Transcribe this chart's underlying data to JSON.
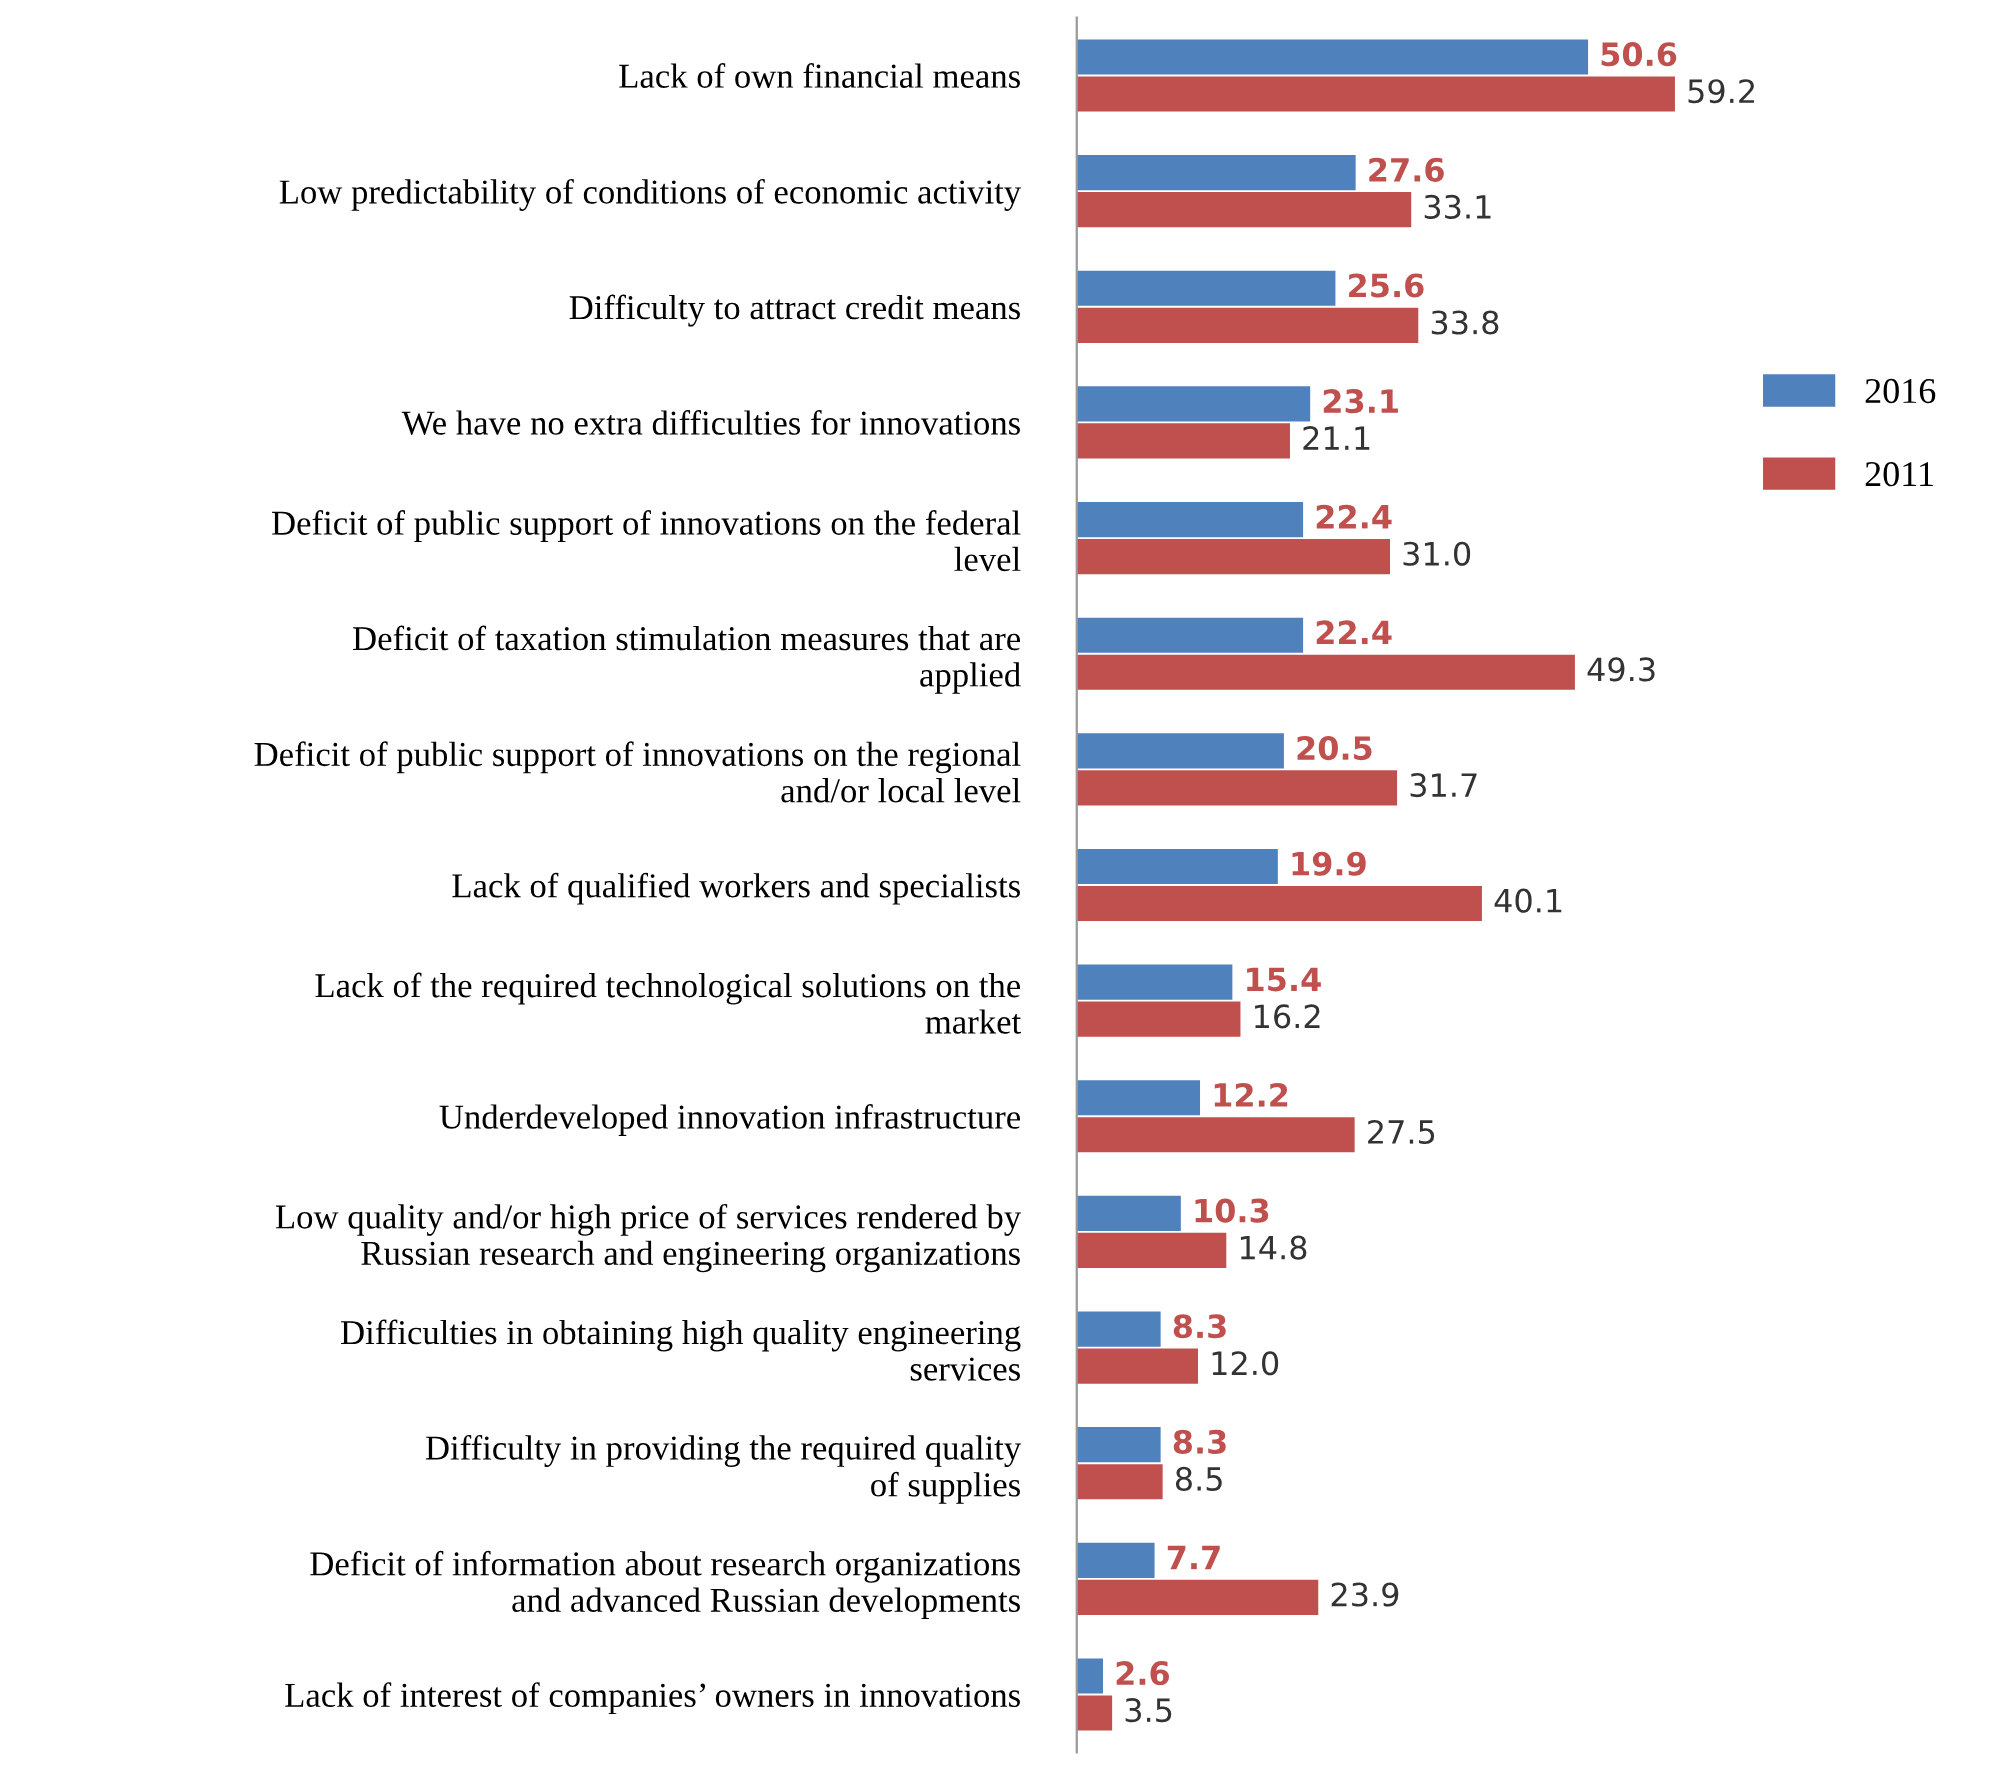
{
  "chart_data": {
    "type": "bar",
    "orientation": "horizontal",
    "legend": "right",
    "grid": false,
    "categories": [
      "Lack of own financial means",
      "Low predictability of conditions of economic activity",
      "Difficulty to attract credit means",
      "We have no extra difficulties for innovations",
      "Deficit of public support of innovations on the federal\nlevel",
      "Deficit of taxation stimulation measures that are\napplied",
      "Deficit of public support of innovations on the regional\nand/or local level",
      "Lack of qualified workers and specialists",
      "Lack of the required technological solutions on the\nmarket",
      "Underdeveloped innovation infrastructure",
      "Low quality and/or high price of services rendered by\nRussian research and engineering organizations",
      "Difficulties in obtaining high quality engineering\nservices",
      "Difficulty in providing the required quality\nof supplies",
      "Deficit of information about research organizations\nand advanced Russian developments",
      "Lack of interest of companies’ owners in innovations"
    ],
    "series": [
      {
        "name": "2016",
        "color": "#4f81bd",
        "values": [
          50.6,
          27.6,
          25.6,
          23.1,
          22.4,
          22.4,
          20.5,
          19.9,
          15.4,
          12.2,
          10.3,
          8.3,
          8.3,
          7.7,
          2.6
        ],
        "value_labels": [
          "50.6",
          "27.6",
          "25.6",
          "23.1",
          "22.4",
          "22.4",
          "20.5",
          "19.9",
          "15.4",
          "12.2",
          "10.3",
          "8.3",
          "8.3",
          "7.7",
          "2.6"
        ]
      },
      {
        "name": "2011",
        "color": "#c0504d",
        "values": [
          59.2,
          33.1,
          33.8,
          21.1,
          31.0,
          49.3,
          31.7,
          40.1,
          16.2,
          27.5,
          14.8,
          12.0,
          8.5,
          23.9,
          3.5
        ],
        "value_labels": [
          "59.2",
          "33.1",
          "33.8",
          "21.1",
          "31.0",
          "49.3",
          "31.7",
          "40.1",
          "16.2",
          "27.5",
          "14.8",
          "12.0",
          "8.5",
          "23.9",
          "3.5"
        ]
      }
    ]
  }
}
